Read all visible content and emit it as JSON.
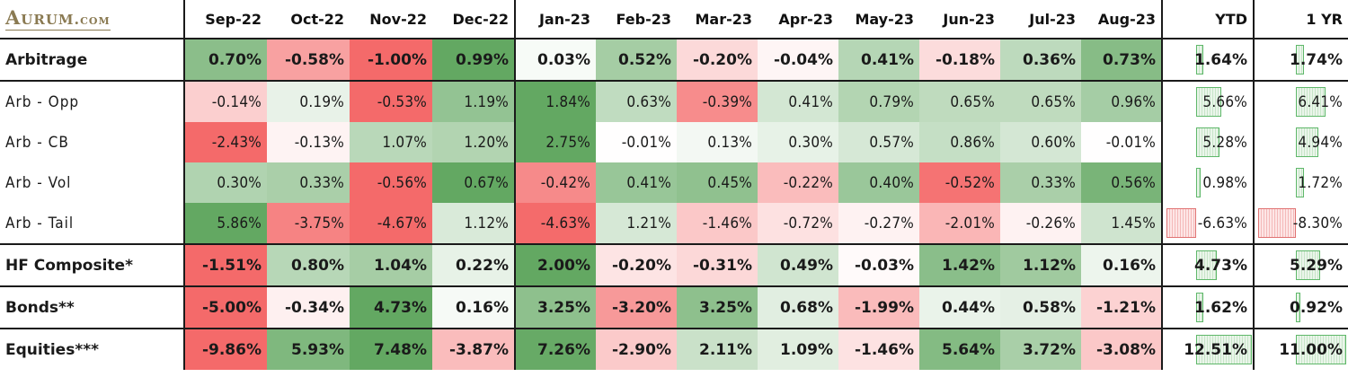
{
  "logo": {
    "main": "Aurum",
    "suffix": ".com"
  },
  "columns": [
    "Sep-22",
    "Oct-22",
    "Nov-22",
    "Dec-22",
    "Jan-23",
    "Feb-23",
    "Mar-23",
    "Apr-23",
    "May-23",
    "Jun-23",
    "Jul-23",
    "Aug-23"
  ],
  "summary_columns": [
    "YTD",
    "1 YR"
  ],
  "rows": [
    {
      "label": "Arbitrage",
      "style": "bold",
      "values": [
        "0.70%",
        "-0.58%",
        "-1.00%",
        "0.99%",
        "0.03%",
        "0.52%",
        "-0.20%",
        "-0.04%",
        "0.41%",
        "-0.18%",
        "0.36%",
        "0.73%"
      ],
      "ytd": "1.64%",
      "one_yr": "1.74%"
    },
    {
      "label": "Arb - Opp",
      "style": "sub",
      "values": [
        "-0.14%",
        "0.19%",
        "-0.53%",
        "1.19%",
        "1.84%",
        "0.63%",
        "-0.39%",
        "0.41%",
        "0.79%",
        "0.65%",
        "0.65%",
        "0.96%"
      ],
      "ytd": "5.66%",
      "one_yr": "6.41%"
    },
    {
      "label": "Arb - CB",
      "style": "sub",
      "values": [
        "-2.43%",
        "-0.13%",
        "1.07%",
        "1.20%",
        "2.75%",
        "-0.01%",
        "0.13%",
        "0.30%",
        "0.57%",
        "0.86%",
        "0.60%",
        "-0.01%"
      ],
      "ytd": "5.28%",
      "one_yr": "4.94%"
    },
    {
      "label": "Arb - Vol",
      "style": "sub",
      "values": [
        "0.30%",
        "0.33%",
        "-0.56%",
        "0.67%",
        "-0.42%",
        "0.41%",
        "0.45%",
        "-0.22%",
        "0.40%",
        "-0.52%",
        "0.33%",
        "0.56%"
      ],
      "ytd": "0.98%",
      "one_yr": "1.72%"
    },
    {
      "label": "Arb - Tail",
      "style": "sub",
      "values": [
        "5.86%",
        "-3.75%",
        "-4.67%",
        "1.12%",
        "-4.63%",
        "1.21%",
        "-1.46%",
        "-0.72%",
        "-0.27%",
        "-2.01%",
        "-0.26%",
        "1.45%"
      ],
      "ytd": "-6.63%",
      "one_yr": "-8.30%"
    },
    {
      "label": "HF Composite*",
      "style": "bold",
      "values": [
        "-1.51%",
        "0.80%",
        "1.04%",
        "0.22%",
        "2.00%",
        "-0.20%",
        "-0.31%",
        "0.49%",
        "-0.03%",
        "1.42%",
        "1.12%",
        "0.16%"
      ],
      "ytd": "4.73%",
      "one_yr": "5.29%"
    },
    {
      "label": "Bonds**",
      "style": "bold",
      "values": [
        "-5.00%",
        "-0.34%",
        "4.73%",
        "0.16%",
        "3.25%",
        "-3.20%",
        "3.25%",
        "0.68%",
        "-1.99%",
        "0.44%",
        "0.58%",
        "-1.21%"
      ],
      "ytd": "1.62%",
      "one_yr": "0.92%"
    },
    {
      "label": "Equities***",
      "style": "bold",
      "values": [
        "-9.86%",
        "5.93%",
        "7.48%",
        "-3.87%",
        "7.26%",
        "-2.90%",
        "2.11%",
        "1.09%",
        "-1.46%",
        "5.64%",
        "3.72%",
        "-3.08%"
      ],
      "ytd": "12.51%",
      "one_yr": "11.00%"
    }
  ],
  "colors": {
    "pos_strong": "#63a862",
    "neg_strong": "#f46a6a",
    "pos_bar": "#5fb86a",
    "neg_bar": "#e07373"
  }
}
